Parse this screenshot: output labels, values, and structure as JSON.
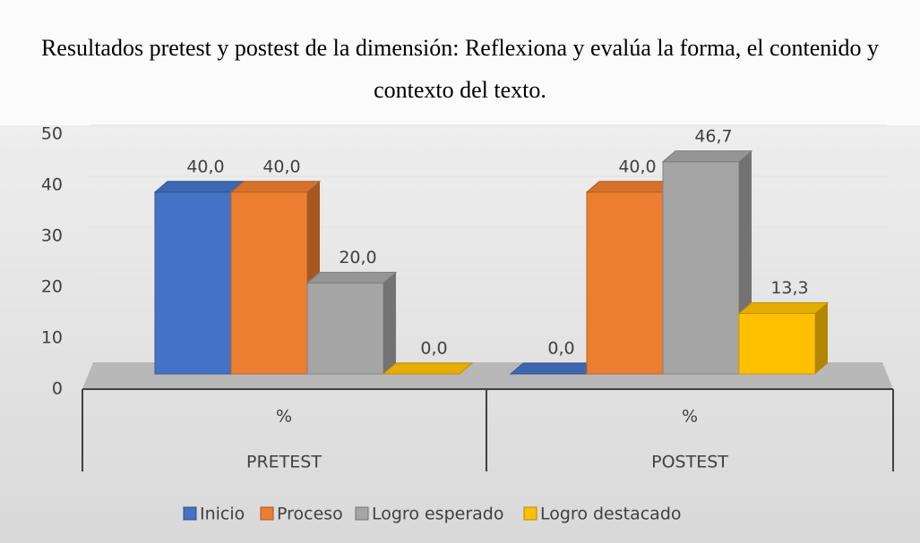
{
  "chart_data": {
    "type": "bar3d",
    "title": "Resultados pretest y postest de la dimensión: Reflexiona y evalúa la forma, el contenido y contexto del texto.",
    "categories": [
      "PRETEST",
      "POSTEST"
    ],
    "subcategories": [
      "%",
      "%"
    ],
    "series": [
      {
        "name": "Inicio",
        "color": "#4472c4",
        "values": [
          40,
          0
        ],
        "value_labels": [
          "40,0",
          "0,0"
        ]
      },
      {
        "name": "Proceso",
        "color": "#ed7d31",
        "values": [
          40,
          40
        ],
        "value_labels": [
          "40,0",
          "40,0"
        ]
      },
      {
        "name": "Logro esperado",
        "color": "#a5a5a5",
        "values": [
          20,
          46.7
        ],
        "value_labels": [
          "20,0",
          "46,7"
        ]
      },
      {
        "name": "Logro destacado",
        "color": "#ffc000",
        "values": [
          0,
          13.3
        ],
        "value_labels": [
          "0,0",
          "13,3"
        ]
      }
    ],
    "ylim": [
      0,
      50
    ],
    "yticks": [
      0,
      10,
      20,
      30,
      40,
      50
    ],
    "grid": true,
    "legend": "bottom"
  }
}
